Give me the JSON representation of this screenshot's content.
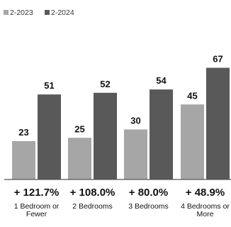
{
  "chart_data": {
    "type": "bar",
    "categories": [
      [
        "1 Bedroom or",
        "Fewer"
      ],
      [
        "2 Bedrooms"
      ],
      [
        "3 Bedrooms"
      ],
      [
        "4 Bedrooms or",
        "More"
      ]
    ],
    "series": [
      {
        "name": "2-2023",
        "values": [
          23,
          25,
          30,
          45
        ],
        "color": "#a6a6a6"
      },
      {
        "name": "2-2024",
        "values": [
          51,
          52,
          54,
          67
        ],
        "color": "#595959"
      }
    ],
    "changes": [
      "+ 121.7%",
      "+ 108.0%",
      "+ 80.0%",
      "+ 48.9%"
    ],
    "ylim": [
      0,
      70
    ],
    "grid": false,
    "legend_position": "top-left",
    "title": "",
    "xlabel": "",
    "ylabel": ""
  }
}
